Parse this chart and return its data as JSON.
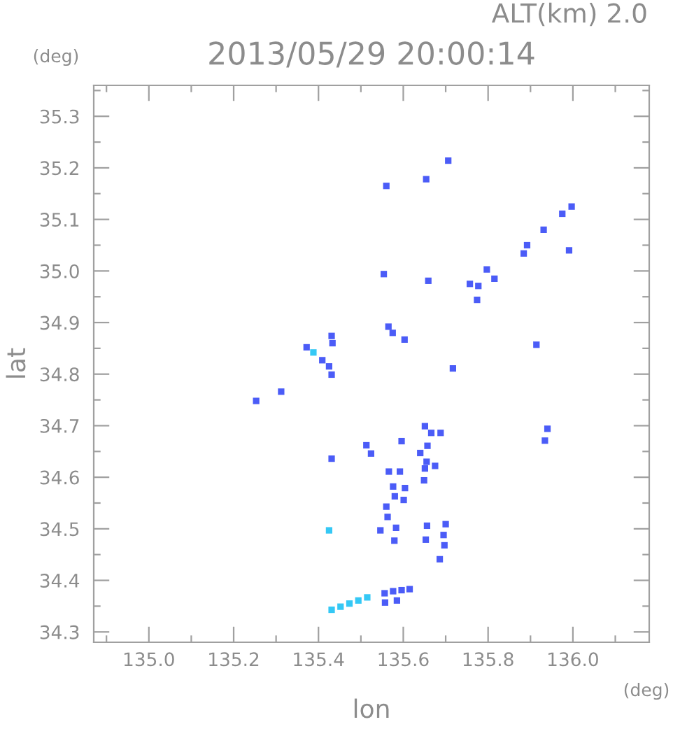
{
  "chart_data": {
    "type": "scatter",
    "title": "2013/05/29 20:00:14",
    "subtitle": "ALT(km) 2.0",
    "xlabel": "lon",
    "ylabel": "lat",
    "annotations": [
      "(deg)",
      "(deg)"
    ],
    "marker": "square",
    "series": [
      {
        "color": "#4b5cf7",
        "x": [
          135.56,
          135.554,
          135.565,
          135.575,
          135.603,
          135.431,
          135.433,
          135.372,
          135.409,
          135.425,
          135.431,
          135.312,
          135.253,
          135.513,
          135.524,
          135.596,
          135.431,
          135.592,
          135.566,
          135.576,
          135.58,
          135.601,
          135.56,
          135.563,
          135.546,
          135.583,
          135.579,
          135.556,
          135.576,
          135.596,
          135.615,
          135.557,
          135.585,
          135.717,
          135.94,
          135.934,
          135.651,
          135.666,
          135.688,
          135.657,
          135.64,
          135.655,
          135.675,
          135.651,
          135.649,
          135.604,
          135.656,
          135.7,
          135.695,
          135.653,
          135.697,
          135.686,
          135.706,
          135.654,
          135.975,
          135.997,
          135.931,
          135.892,
          135.884,
          135.991,
          135.797,
          135.815,
          135.659,
          135.757,
          135.777,
          135.774,
          135.914
        ],
        "values": [
          35.165,
          34.994,
          34.892,
          34.88,
          34.867,
          34.874,
          34.86,
          34.852,
          34.827,
          34.815,
          34.799,
          34.766,
          34.748,
          34.662,
          34.646,
          34.67,
          34.636,
          34.611,
          34.611,
          34.582,
          34.563,
          34.556,
          34.543,
          34.523,
          34.497,
          34.502,
          34.477,
          34.375,
          34.379,
          34.381,
          34.383,
          34.357,
          34.361,
          34.811,
          34.694,
          34.671,
          34.699,
          34.686,
          34.686,
          34.661,
          34.647,
          34.63,
          34.622,
          34.617,
          34.594,
          34.579,
          34.506,
          34.509,
          34.488,
          34.479,
          34.468,
          34.441,
          35.214,
          35.178,
          35.111,
          35.125,
          35.08,
          35.05,
          35.034,
          35.04,
          35.003,
          34.985,
          34.981,
          34.975,
          34.971,
          34.944,
          34.857
        ]
      },
      {
        "color": "#35c8f5",
        "x": [
          135.388,
          135.431,
          135.452,
          135.473,
          135.494,
          135.515,
          135.425
        ],
        "values": [
          34.842,
          34.343,
          34.349,
          34.355,
          34.361,
          34.367,
          34.497
        ]
      }
    ],
    "xlim": [
      134.87,
      136.18
    ],
    "ylim": [
      34.28,
      35.36
    ],
    "xticks": [
      {
        "value": 134.9,
        "label": null
      },
      {
        "value": 135.0,
        "label": "135.0"
      },
      {
        "value": 135.1,
        "label": null
      },
      135.2,
      {
        "value": 135.3,
        "label": null
      },
      135.4,
      {
        "value": 135.5,
        "label": null
      },
      135.6,
      {
        "value": 135.7,
        "label": null
      },
      135.8,
      {
        "value": 135.9,
        "label": null
      },
      {
        "value": 136.0,
        "label": "136.0"
      },
      {
        "value": 136.1,
        "label": null
      }
    ],
    "yticks": [
      34.3,
      {
        "value": 34.35,
        "label": null
      },
      34.4,
      {
        "value": 34.45,
        "label": null
      },
      34.5,
      {
        "value": 34.55,
        "label": null
      },
      34.6,
      {
        "value": 34.65,
        "label": null
      },
      34.7,
      {
        "value": 34.75,
        "label": null
      },
      34.8,
      {
        "value": 34.85,
        "label": null
      },
      34.9,
      {
        "value": 34.95,
        "label": null
      },
      {
        "value": 35.0,
        "label": "35.0"
      },
      {
        "value": 35.05,
        "label": null
      },
      35.1,
      {
        "value": 35.15,
        "label": null
      },
      35.2,
      {
        "value": 35.25,
        "label": null
      },
      35.3,
      {
        "value": 35.35,
        "label": null
      }
    ]
  }
}
